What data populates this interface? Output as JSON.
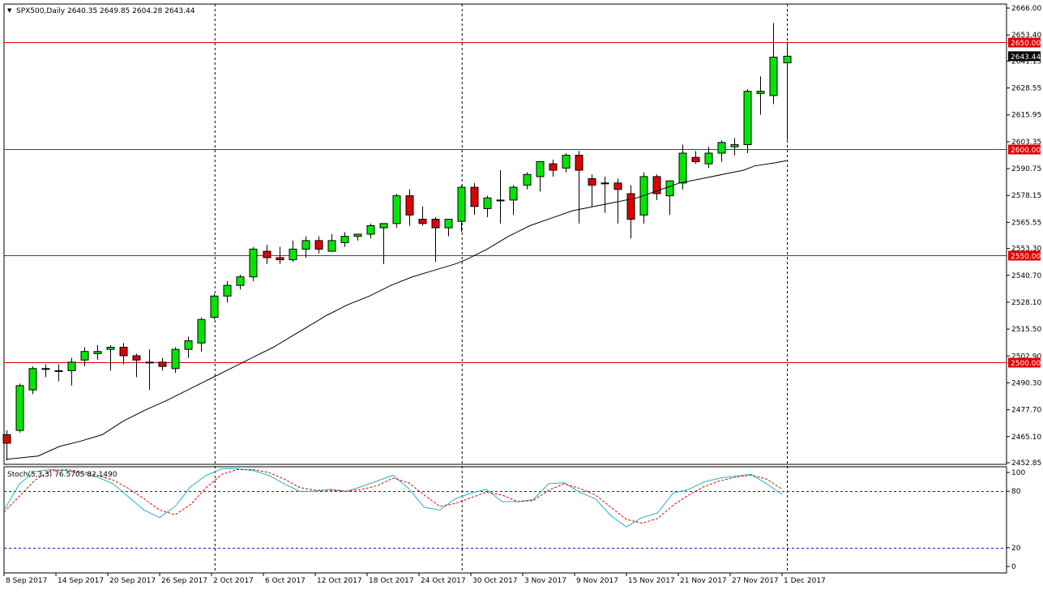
{
  "header": {
    "arrow": "▼",
    "text": "SPX500,Daily  2640.35 2649.85 2604.28 2643.44"
  },
  "colors": {
    "bull": "#00e600",
    "bear": "#e00000",
    "level": "#e00000",
    "ma": "#000000",
    "stoch_main": "#20b2c8",
    "stoch_signal": "#e00000",
    "bg": "#ffffff"
  },
  "chart_data": [
    {
      "type": "candlestick",
      "title": "SPX500,Daily",
      "header_values": {
        "open": 2640.35,
        "high": 2649.85,
        "low": 2604.28,
        "close": 2643.44
      },
      "ylim": [
        2452.85,
        2666.0
      ],
      "y_ticks": [
        "2666.00",
        "2653.40",
        "2641.15",
        "2628.55",
        "2615.95",
        "2603.35",
        "2590.75",
        "2578.15",
        "2565.55",
        "2553.30",
        "2540.70",
        "2528.10",
        "2515.50",
        "2502.90",
        "2490.30",
        "2477.70",
        "2465.10",
        "2452.85"
      ],
      "x_ticks": [
        "8 Sep 2017",
        "14 Sep 2017",
        "20 Sep 2017",
        "26 Sep 2017",
        "2 Oct 2017",
        "6 Oct 2017",
        "12 Oct 2017",
        "18 Oct 2017",
        "24 Oct 2017",
        "30 Oct 2017",
        "3 Nov 2017",
        "9 Nov 2017",
        "15 Nov 2017",
        "21 Nov 2017",
        "27 Nov 2017",
        "1 Dec 2017"
      ],
      "levels": [
        2650.0,
        2600.0,
        2550.0,
        2500.0
      ],
      "level_labels": [
        "2650.00",
        "2600.00",
        "2550.00",
        "2500.00"
      ],
      "last_price_label": "2643.44",
      "candles": [
        [
          2466,
          2468,
          2454,
          2462
        ],
        [
          2468,
          2490,
          2467,
          2489
        ],
        [
          2487,
          2498,
          2485,
          2497
        ],
        [
          2497,
          2499,
          2493,
          2497
        ],
        [
          2496,
          2499,
          2491,
          2496
        ],
        [
          2496,
          2502,
          2489,
          2500
        ],
        [
          2501,
          2507,
          2498,
          2505
        ],
        [
          2504,
          2508,
          2501,
          2505
        ],
        [
          2506,
          2508,
          2496,
          2507
        ],
        [
          2507,
          2509,
          2499,
          2503
        ],
        [
          2503,
          2504,
          2493,
          2501
        ],
        [
          2500,
          2506,
          2487,
          2500
        ],
        [
          2500,
          2502,
          2496,
          2498
        ],
        [
          2497,
          2507,
          2495,
          2506
        ],
        [
          2506,
          2512,
          2502,
          2510
        ],
        [
          2509,
          2521,
          2505,
          2520
        ],
        [
          2521,
          2532,
          2520,
          2531
        ],
        [
          2531,
          2538,
          2528,
          2536
        ],
        [
          2536,
          2541,
          2534,
          2540
        ],
        [
          2540,
          2554,
          2538,
          2553
        ],
        [
          2552,
          2555,
          2546,
          2549
        ],
        [
          2549,
          2554,
          2546,
          2548
        ],
        [
          2548,
          2557,
          2547,
          2553
        ],
        [
          2553,
          2559,
          2549,
          2557
        ],
        [
          2557,
          2559,
          2551,
          2553
        ],
        [
          2552,
          2560,
          2552,
          2557
        ],
        [
          2556,
          2561,
          2554,
          2559
        ],
        [
          2559,
          2560,
          2557,
          2560
        ],
        [
          2560,
          2565,
          2558,
          2564
        ],
        [
          2563,
          2565,
          2546,
          2565
        ],
        [
          2565,
          2579,
          2563,
          2578
        ],
        [
          2578,
          2581,
          2564,
          2569
        ],
        [
          2567,
          2573,
          2564,
          2565
        ],
        [
          2567,
          2568,
          2547,
          2563
        ],
        [
          2563,
          2567,
          2559,
          2567
        ],
        [
          2566,
          2583,
          2561,
          2582
        ],
        [
          2582,
          2584,
          2569,
          2573
        ],
        [
          2572,
          2578,
          2568,
          2577
        ],
        [
          2576,
          2590,
          2565,
          2576
        ],
        [
          2576,
          2583,
          2569,
          2582
        ],
        [
          2583,
          2589,
          2581,
          2588
        ],
        [
          2587,
          2594,
          2580,
          2594
        ],
        [
          2593,
          2595,
          2587,
          2590
        ],
        [
          2591,
          2598,
          2589,
          2597
        ],
        [
          2597,
          2599,
          2565,
          2590
        ],
        [
          2586,
          2588,
          2573,
          2583
        ],
        [
          2584,
          2587,
          2570,
          2584
        ],
        [
          2584,
          2586,
          2565,
          2581
        ],
        [
          2579,
          2583,
          2558,
          2567
        ],
        [
          2569,
          2589,
          2565,
          2587
        ],
        [
          2587,
          2588,
          2576,
          2579
        ],
        [
          2578,
          2585,
          2569,
          2585
        ],
        [
          2584,
          2602,
          2581,
          2598
        ],
        [
          2596,
          2599,
          2593,
          2594
        ],
        [
          2593,
          2601,
          2591,
          2598
        ],
        [
          2598,
          2604,
          2594,
          2603
        ],
        [
          2601,
          2605,
          2597,
          2602
        ],
        [
          2602,
          2628,
          2598,
          2627
        ],
        [
          2626,
          2634,
          2616,
          2627
        ],
        [
          2625,
          2659,
          2621,
          2643
        ],
        [
          2640.35,
          2649.85,
          2604.28,
          2643.44
        ]
      ],
      "ma": [
        [
          0,
          2454.5
        ],
        [
          6,
          2456
        ],
        [
          10,
          2460.5
        ],
        [
          14,
          2463
        ],
        [
          18,
          2466
        ],
        [
          22,
          2472.5
        ],
        [
          26,
          2477.5
        ],
        [
          30,
          2482
        ],
        [
          34,
          2487
        ],
        [
          38,
          2492
        ],
        [
          42,
          2497
        ],
        [
          46,
          2502
        ],
        [
          50,
          2507
        ],
        [
          54,
          2513
        ],
        [
          58,
          2519
        ],
        [
          60,
          2522
        ],
        [
          64,
          2527
        ],
        [
          68,
          2531
        ],
        [
          72,
          2536
        ],
        [
          76,
          2540
        ],
        [
          80,
          2543
        ],
        [
          84,
          2546
        ],
        [
          86,
          2548
        ],
        [
          90,
          2553
        ],
        [
          94,
          2559
        ],
        [
          98,
          2564
        ],
        [
          102,
          2567.5
        ],
        [
          106,
          2571
        ],
        [
          110,
          2573
        ],
        [
          114,
          2575
        ],
        [
          118,
          2577
        ],
        [
          122,
          2580.5
        ],
        [
          126,
          2584
        ],
        [
          130,
          2586
        ],
        [
          134,
          2588
        ],
        [
          138,
          2590
        ],
        [
          140,
          2592
        ],
        [
          144,
          2593.5
        ],
        [
          146,
          2594.5
        ]
      ]
    },
    {
      "type": "line",
      "title": "Stoch(5,3,3) 76.5705 82.1490",
      "ylim": [
        0,
        100
      ],
      "y_ticks": [
        "100",
        "80",
        "20",
        "0"
      ],
      "levels": [
        80,
        20
      ],
      "series": [
        {
          "name": "main",
          "values": [
            60,
            88,
            101,
            103,
            102,
            99,
            95,
            88,
            74,
            60,
            52,
            64,
            85,
            97,
            104,
            104,
            102,
            97,
            88,
            80,
            80,
            82,
            80,
            85,
            91,
            97,
            83,
            63,
            60,
            72,
            78,
            82,
            69,
            69,
            71,
            88,
            89,
            79,
            72,
            54,
            42,
            52,
            57,
            78,
            82,
            90,
            94,
            96,
            98,
            88,
            76.6
          ]
        },
        {
          "name": "signal",
          "values": [
            58,
            75,
            92,
            102,
            103,
            101,
            97,
            92,
            83,
            72,
            60,
            55,
            66,
            84,
            98,
            103,
            103,
            100,
            93,
            84,
            81,
            81,
            80,
            82,
            86,
            94,
            89,
            76,
            64,
            67,
            73,
            79,
            76,
            69,
            70,
            81,
            88,
            83,
            76,
            63,
            50,
            46,
            51,
            65,
            76,
            85,
            91,
            95,
            97,
            93,
            82.1
          ]
        }
      ]
    }
  ]
}
